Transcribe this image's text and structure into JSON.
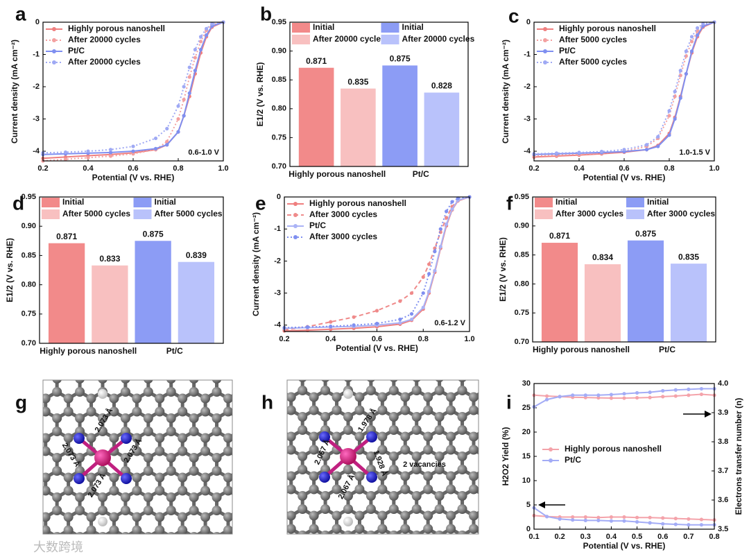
{
  "chart_data": [
    {
      "panel": "a",
      "type": "line",
      "xlabel": "Potential (V vs. RHE)",
      "ylabel": "Current density (mA cm⁻²)",
      "annotation": "0.6-1.0 V",
      "x": [
        0.2,
        0.3,
        0.4,
        0.5,
        0.6,
        0.7,
        0.75,
        0.8,
        0.825,
        0.85,
        0.875,
        0.9,
        0.925,
        0.95,
        1.0
      ],
      "series": [
        {
          "name": "Highly porous nanoshell",
          "color": "#ef7f7f",
          "style": "solid",
          "values": [
            -4.22,
            -4.18,
            -4.14,
            -4.1,
            -4.05,
            -3.95,
            -3.8,
            -3.4,
            -2.9,
            -2.3,
            -1.6,
            -0.95,
            -0.45,
            -0.15,
            0
          ]
        },
        {
          "name": "After 20000 cycles",
          "color": "#f3a0a0",
          "style": "dotted",
          "values": [
            -4.3,
            -4.25,
            -4.2,
            -4.15,
            -4.08,
            -3.95,
            -3.7,
            -3.0,
            -2.4,
            -1.7,
            -1.1,
            -0.6,
            -0.25,
            -0.08,
            0
          ]
        },
        {
          "name": "Pt/C",
          "color": "#7f8ff0",
          "style": "solid",
          "values": [
            -4.1,
            -4.08,
            -4.06,
            -4.04,
            -4.0,
            -3.92,
            -3.8,
            -3.4,
            -2.9,
            -2.2,
            -1.5,
            -0.85,
            -0.4,
            -0.12,
            0
          ]
        },
        {
          "name": "After 20000 cycles",
          "color": "#9fa9f4",
          "style": "dotted",
          "values": [
            -4.05,
            -4.03,
            -4.0,
            -3.95,
            -3.85,
            -3.6,
            -3.3,
            -2.6,
            -2.0,
            -1.4,
            -0.85,
            -0.45,
            -0.2,
            -0.05,
            0
          ]
        }
      ],
      "xlim": [
        0.2,
        1.0
      ],
      "ylim": [
        -4.3,
        0
      ],
      "xticks": [
        0.2,
        0.4,
        0.6,
        0.8,
        {
          "value": 1,
          "label": "1.0"
        }
      ],
      "yticks": [
        0,
        -1,
        -2,
        -3,
        -4
      ]
    },
    {
      "panel": "b",
      "type": "bar",
      "ylabel": "E1/2 (V vs. RHE)",
      "categories": [
        "Highly porous nanoshell",
        "Pt/C"
      ],
      "series": [
        {
          "name": "Initial",
          "color": "#f28a8a",
          "values": [
            0.871,
            null
          ]
        },
        {
          "name": "After 20000 cycles",
          "color": "#f8c0c0",
          "values": [
            0.835,
            null
          ]
        },
        {
          "name": "Initial",
          "color": "#8c9cf5",
          "values": [
            null,
            0.875
          ]
        },
        {
          "name": "After 20000 cycles",
          "color": "#b9c2fb",
          "values": [
            null,
            0.828
          ]
        }
      ],
      "ylim": [
        0.7,
        0.95
      ],
      "yticks": [
        {
          "value": 0.7,
          "label": "0.70"
        },
        0.75,
        {
          "value": 0.8,
          "label": "0.80"
        },
        0.85,
        {
          "value": 0.9,
          "label": "0.90"
        },
        0.95
      ]
    },
    {
      "panel": "c",
      "type": "line",
      "xlabel": "Potential (V vs. RHE)",
      "ylabel": "Current density (mA cm⁻²)",
      "annotation": "1.0-1.5 V",
      "x": [
        0.2,
        0.3,
        0.4,
        0.5,
        0.6,
        0.7,
        0.75,
        0.8,
        0.825,
        0.85,
        0.875,
        0.9,
        0.925,
        0.95,
        1.0
      ],
      "series": [
        {
          "name": "Highly porous nanoshell",
          "color": "#ef7f7f",
          "style": "solid",
          "values": [
            -4.18,
            -4.15,
            -4.12,
            -4.08,
            -4.03,
            -3.95,
            -3.82,
            -3.45,
            -2.95,
            -2.3,
            -1.6,
            -0.95,
            -0.45,
            -0.15,
            0
          ]
        },
        {
          "name": "After 5000 cycles",
          "color": "#f3a0a0",
          "style": "dotted",
          "values": [
            -4.15,
            -4.12,
            -4.1,
            -4.06,
            -4.0,
            -3.85,
            -3.6,
            -2.9,
            -2.3,
            -1.65,
            -1.05,
            -0.6,
            -0.28,
            -0.1,
            0
          ]
        },
        {
          "name": "Pt/C",
          "color": "#7f8ff0",
          "style": "solid",
          "values": [
            -4.1,
            -4.08,
            -4.06,
            -4.04,
            -4.01,
            -3.95,
            -3.85,
            -3.5,
            -3.0,
            -2.35,
            -1.6,
            -0.9,
            -0.4,
            -0.12,
            0
          ]
        },
        {
          "name": "After 5000 cycles",
          "color": "#9fa9f4",
          "style": "dotted",
          "values": [
            -4.08,
            -4.06,
            -4.04,
            -4.01,
            -3.95,
            -3.8,
            -3.55,
            -2.75,
            -2.15,
            -1.5,
            -0.9,
            -0.45,
            -0.18,
            -0.05,
            0
          ]
        }
      ],
      "xlim": [
        0.2,
        1.0
      ],
      "ylim": [
        -4.3,
        0
      ],
      "xticks": [
        0.2,
        0.4,
        0.6,
        0.8,
        {
          "value": 1,
          "label": "1.0"
        }
      ],
      "yticks": [
        0,
        -1,
        -2,
        -3,
        -4
      ]
    },
    {
      "panel": "d",
      "type": "bar",
      "ylabel": "E1/2 (V vs. RHE)",
      "categories": [
        "Highly porous nanoshell",
        "Pt/C"
      ],
      "series": [
        {
          "name": "Initial",
          "color": "#f28a8a",
          "values": [
            0.871,
            null
          ]
        },
        {
          "name": "After 5000 cycles",
          "color": "#f8c0c0",
          "values": [
            0.833,
            null
          ]
        },
        {
          "name": "Initial",
          "color": "#8c9cf5",
          "values": [
            null,
            0.875
          ]
        },
        {
          "name": "After 5000 cycles",
          "color": "#b9c2fb",
          "values": [
            null,
            0.839
          ]
        }
      ],
      "ylim": [
        0.7,
        0.95
      ],
      "yticks": [
        {
          "value": 0.7,
          "label": "0.70"
        },
        0.75,
        {
          "value": 0.8,
          "label": "0.80"
        },
        0.85,
        {
          "value": 0.9,
          "label": "0.90"
        },
        0.95
      ]
    },
    {
      "panel": "e",
      "type": "line",
      "xlabel": "Potential (V vs. RHE)",
      "ylabel": "Current density (mA cm⁻²)",
      "annotation": "0.6-1.2 V",
      "x": [
        0.2,
        0.3,
        0.4,
        0.5,
        0.6,
        0.7,
        0.75,
        0.8,
        0.825,
        0.85,
        0.875,
        0.9,
        0.925,
        0.95,
        1.0
      ],
      "series": [
        {
          "name": "Highly porous nanoshell",
          "color": "#ef7f7f",
          "style": "solid",
          "values": [
            -4.18,
            -4.16,
            -4.13,
            -4.1,
            -4.05,
            -3.97,
            -3.85,
            -3.5,
            -3.0,
            -2.35,
            -1.6,
            -0.9,
            -0.4,
            -0.12,
            0
          ]
        },
        {
          "name": "After 3000 cycles",
          "color": "#ef8a8a",
          "style": "dashed",
          "values": [
            -4.15,
            -4.05,
            -3.9,
            -3.75,
            -3.55,
            -3.25,
            -3.0,
            -2.5,
            -2.1,
            -1.6,
            -1.1,
            -0.65,
            -0.3,
            -0.1,
            0
          ]
        },
        {
          "name": "Pt/C",
          "color": "#aab3f6",
          "style": "solid",
          "values": [
            -4.1,
            -4.08,
            -4.06,
            -4.04,
            -4.0,
            -3.93,
            -3.82,
            -3.45,
            -2.95,
            -2.3,
            -1.55,
            -0.85,
            -0.38,
            -0.1,
            0
          ]
        },
        {
          "name": "After 3000 cycles",
          "color": "#7f8ff0",
          "style": "dotted",
          "values": [
            -4.08,
            -4.06,
            -4.04,
            -4.0,
            -3.95,
            -3.82,
            -3.65,
            -3.0,
            -2.4,
            -1.7,
            -1.0,
            -0.45,
            -0.15,
            -0.04,
            0
          ]
        }
      ],
      "xlim": [
        0.2,
        1.0
      ],
      "ylim": [
        -4.2,
        0
      ],
      "xticks": [
        0.2,
        0.4,
        0.6,
        0.8,
        {
          "value": 1,
          "label": "1.0"
        }
      ],
      "yticks": [
        0,
        -1,
        -2,
        -3,
        -4
      ]
    },
    {
      "panel": "f",
      "type": "bar",
      "ylabel": "E1/2 (V vs. RHE)",
      "categories": [
        "Highly porous nanoshell",
        "Pt/C"
      ],
      "series": [
        {
          "name": "Initial",
          "color": "#f28a8a",
          "values": [
            0.871,
            null
          ]
        },
        {
          "name": "After 3000 cycles",
          "color": "#f8c0c0",
          "values": [
            0.834,
            null
          ]
        },
        {
          "name": "Initial",
          "color": "#8c9cf5",
          "values": [
            null,
            0.875
          ]
        },
        {
          "name": "After 3000 cycles",
          "color": "#b9c2fb",
          "values": [
            null,
            0.835
          ]
        }
      ],
      "ylim": [
        0.7,
        0.95
      ],
      "yticks": [
        {
          "value": 0.7,
          "label": "0.70"
        },
        0.75,
        {
          "value": 0.8,
          "label": "0.80"
        },
        0.85,
        {
          "value": 0.9,
          "label": "0.90"
        },
        0.95
      ]
    },
    {
      "panel": "i",
      "type": "line",
      "xlabel": "Potential (V vs. RHE)",
      "ylabel": "H2O2 Yield (%)",
      "y2label": "Electrons transfer number (n)",
      "x": [
        0.1,
        0.15,
        0.2,
        0.25,
        0.3,
        0.35,
        0.4,
        0.45,
        0.5,
        0.55,
        0.6,
        0.65,
        0.7,
        0.75,
        0.8
      ],
      "series": [
        {
          "name": "Highly porous nanoshell",
          "color": "#f4a3aa",
          "style": "solid",
          "values": [
            2.8,
            2.6,
            2.5,
            2.5,
            2.5,
            2.4,
            2.5,
            2.5,
            2.4,
            2.4,
            2.3,
            2.2,
            2.1,
            2.0,
            1.9
          ]
        },
        {
          "name": "Pt/C",
          "color": "#a3acf6",
          "style": "solid",
          "values": [
            4.4,
            2.6,
            2.1,
            1.9,
            1.8,
            1.8,
            1.7,
            1.7,
            1.5,
            1.3,
            1.1,
            1.0,
            0.9,
            0.9,
            0.9
          ]
        },
        {
          "color": "#f4a3aa",
          "style": "solid",
          "axis": "y2",
          "values": [
            3.96,
            3.957,
            3.955,
            3.953,
            3.952,
            3.951,
            3.95,
            3.95,
            3.951,
            3.952,
            3.955,
            3.957,
            3.96,
            3.963,
            3.96
          ]
        },
        {
          "color": "#a3acf6",
          "style": "solid",
          "axis": "y2",
          "values": [
            3.92,
            3.945,
            3.955,
            3.96,
            3.96,
            3.96,
            3.962,
            3.965,
            3.968,
            3.97,
            3.975,
            3.978,
            3.98,
            3.982,
            3.982
          ]
        }
      ],
      "xlim": [
        0.1,
        0.8
      ],
      "ylim": [
        0,
        30
      ],
      "y2lim": [
        3.5,
        4.0
      ],
      "xticks": [
        0.1,
        0.2,
        0.3,
        0.4,
        0.5,
        0.6,
        0.7,
        0.8
      ],
      "yticks": [
        0,
        5,
        10,
        15,
        20,
        25,
        30
      ],
      "y2ticks": [
        3.5,
        3.6,
        3.7,
        3.8,
        3.9,
        {
          "value": 4,
          "label": "4.0"
        }
      ]
    }
  ],
  "structures": [
    {
      "panel": "g",
      "labels": [
        "2.073 Å",
        "2.073 Å",
        "2.073 Å",
        "2.073 Å"
      ]
    },
    {
      "panel": "h",
      "labels": [
        "1.978 Å",
        "2.067 Å",
        "2.067 Å",
        "1.928 Å",
        "2 vacancies"
      ]
    }
  ],
  "watermark": "大数跨境"
}
